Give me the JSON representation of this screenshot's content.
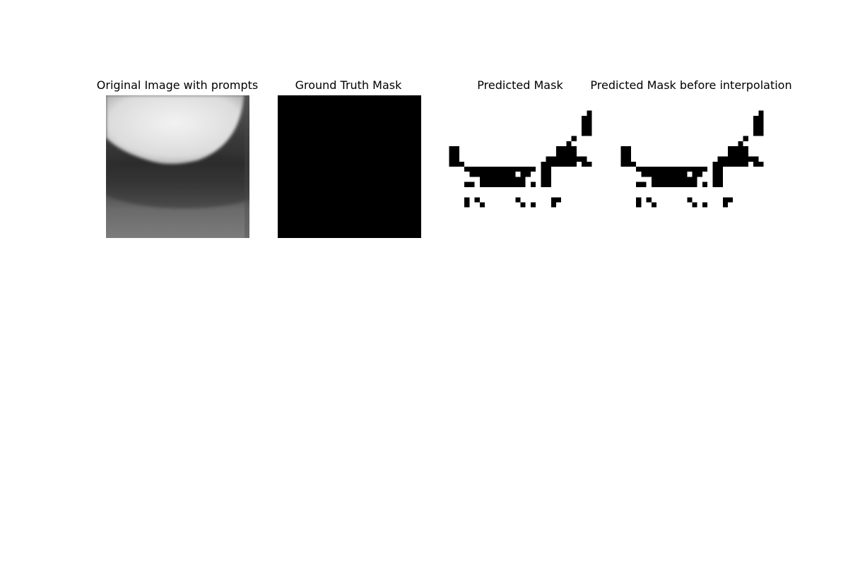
{
  "figure": {
    "panels": [
      {
        "title": "Original Image with prompts",
        "kind": "ct-slice"
      },
      {
        "title": "Ground Truth Mask",
        "kind": "mask-empty"
      },
      {
        "title": "Predicted Mask",
        "kind": "mask"
      },
      {
        "title": "Predicted Mask before interpolation",
        "kind": "mask"
      }
    ]
  },
  "colors": {
    "background": "#ffffff",
    "mask_on": "#000000",
    "mask_off": "#ffffff",
    "ct_bright": "#e8e8e8",
    "ct_dark": "#303030",
    "ct_mid": "#7a7a7a"
  }
}
